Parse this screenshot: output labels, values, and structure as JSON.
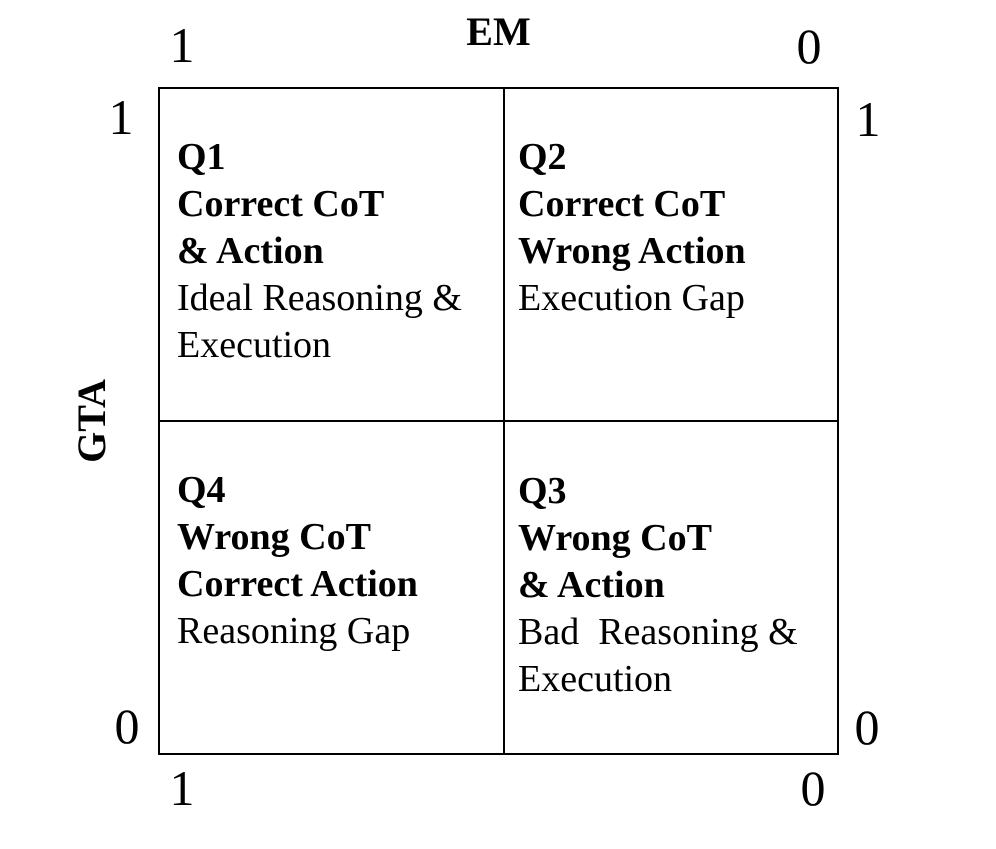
{
  "figure": {
    "background_color": "#ffffff",
    "line_color": "#000000",
    "text_color": "#000000"
  },
  "axes": {
    "x": {
      "title": "EM"
    },
    "y": {
      "title": "GTA"
    }
  },
  "ticks": {
    "top_left": "1",
    "top_right": "0",
    "left_top": "1",
    "left_bottom": "0",
    "right_top": "1",
    "right_bottom": "0",
    "bottom_left": "1",
    "bottom_right": "0"
  },
  "quadrants": [
    {
      "id": "Q1",
      "position": "top-left",
      "title_lines": [
        "Q1",
        "Correct CoT",
        "& Action"
      ],
      "desc_lines": [
        "Ideal Reasoning &",
        "Execution"
      ]
    },
    {
      "id": "Q2",
      "position": "top-right",
      "title_lines": [
        "Q2",
        "Correct CoT",
        "Wrong Action"
      ],
      "desc_lines": [
        "Execution Gap"
      ]
    },
    {
      "id": "Q4",
      "position": "bottom-left",
      "title_lines": [
        "Q4",
        "Wrong CoT",
        "Correct Action"
      ],
      "desc_lines": [
        "Reasoning Gap"
      ]
    },
    {
      "id": "Q3",
      "position": "bottom-right",
      "title_lines": [
        "Q3",
        "Wrong CoT",
        "& Action"
      ],
      "desc_lines": [
        "Bad  Reasoning &",
        "Execution"
      ]
    }
  ]
}
